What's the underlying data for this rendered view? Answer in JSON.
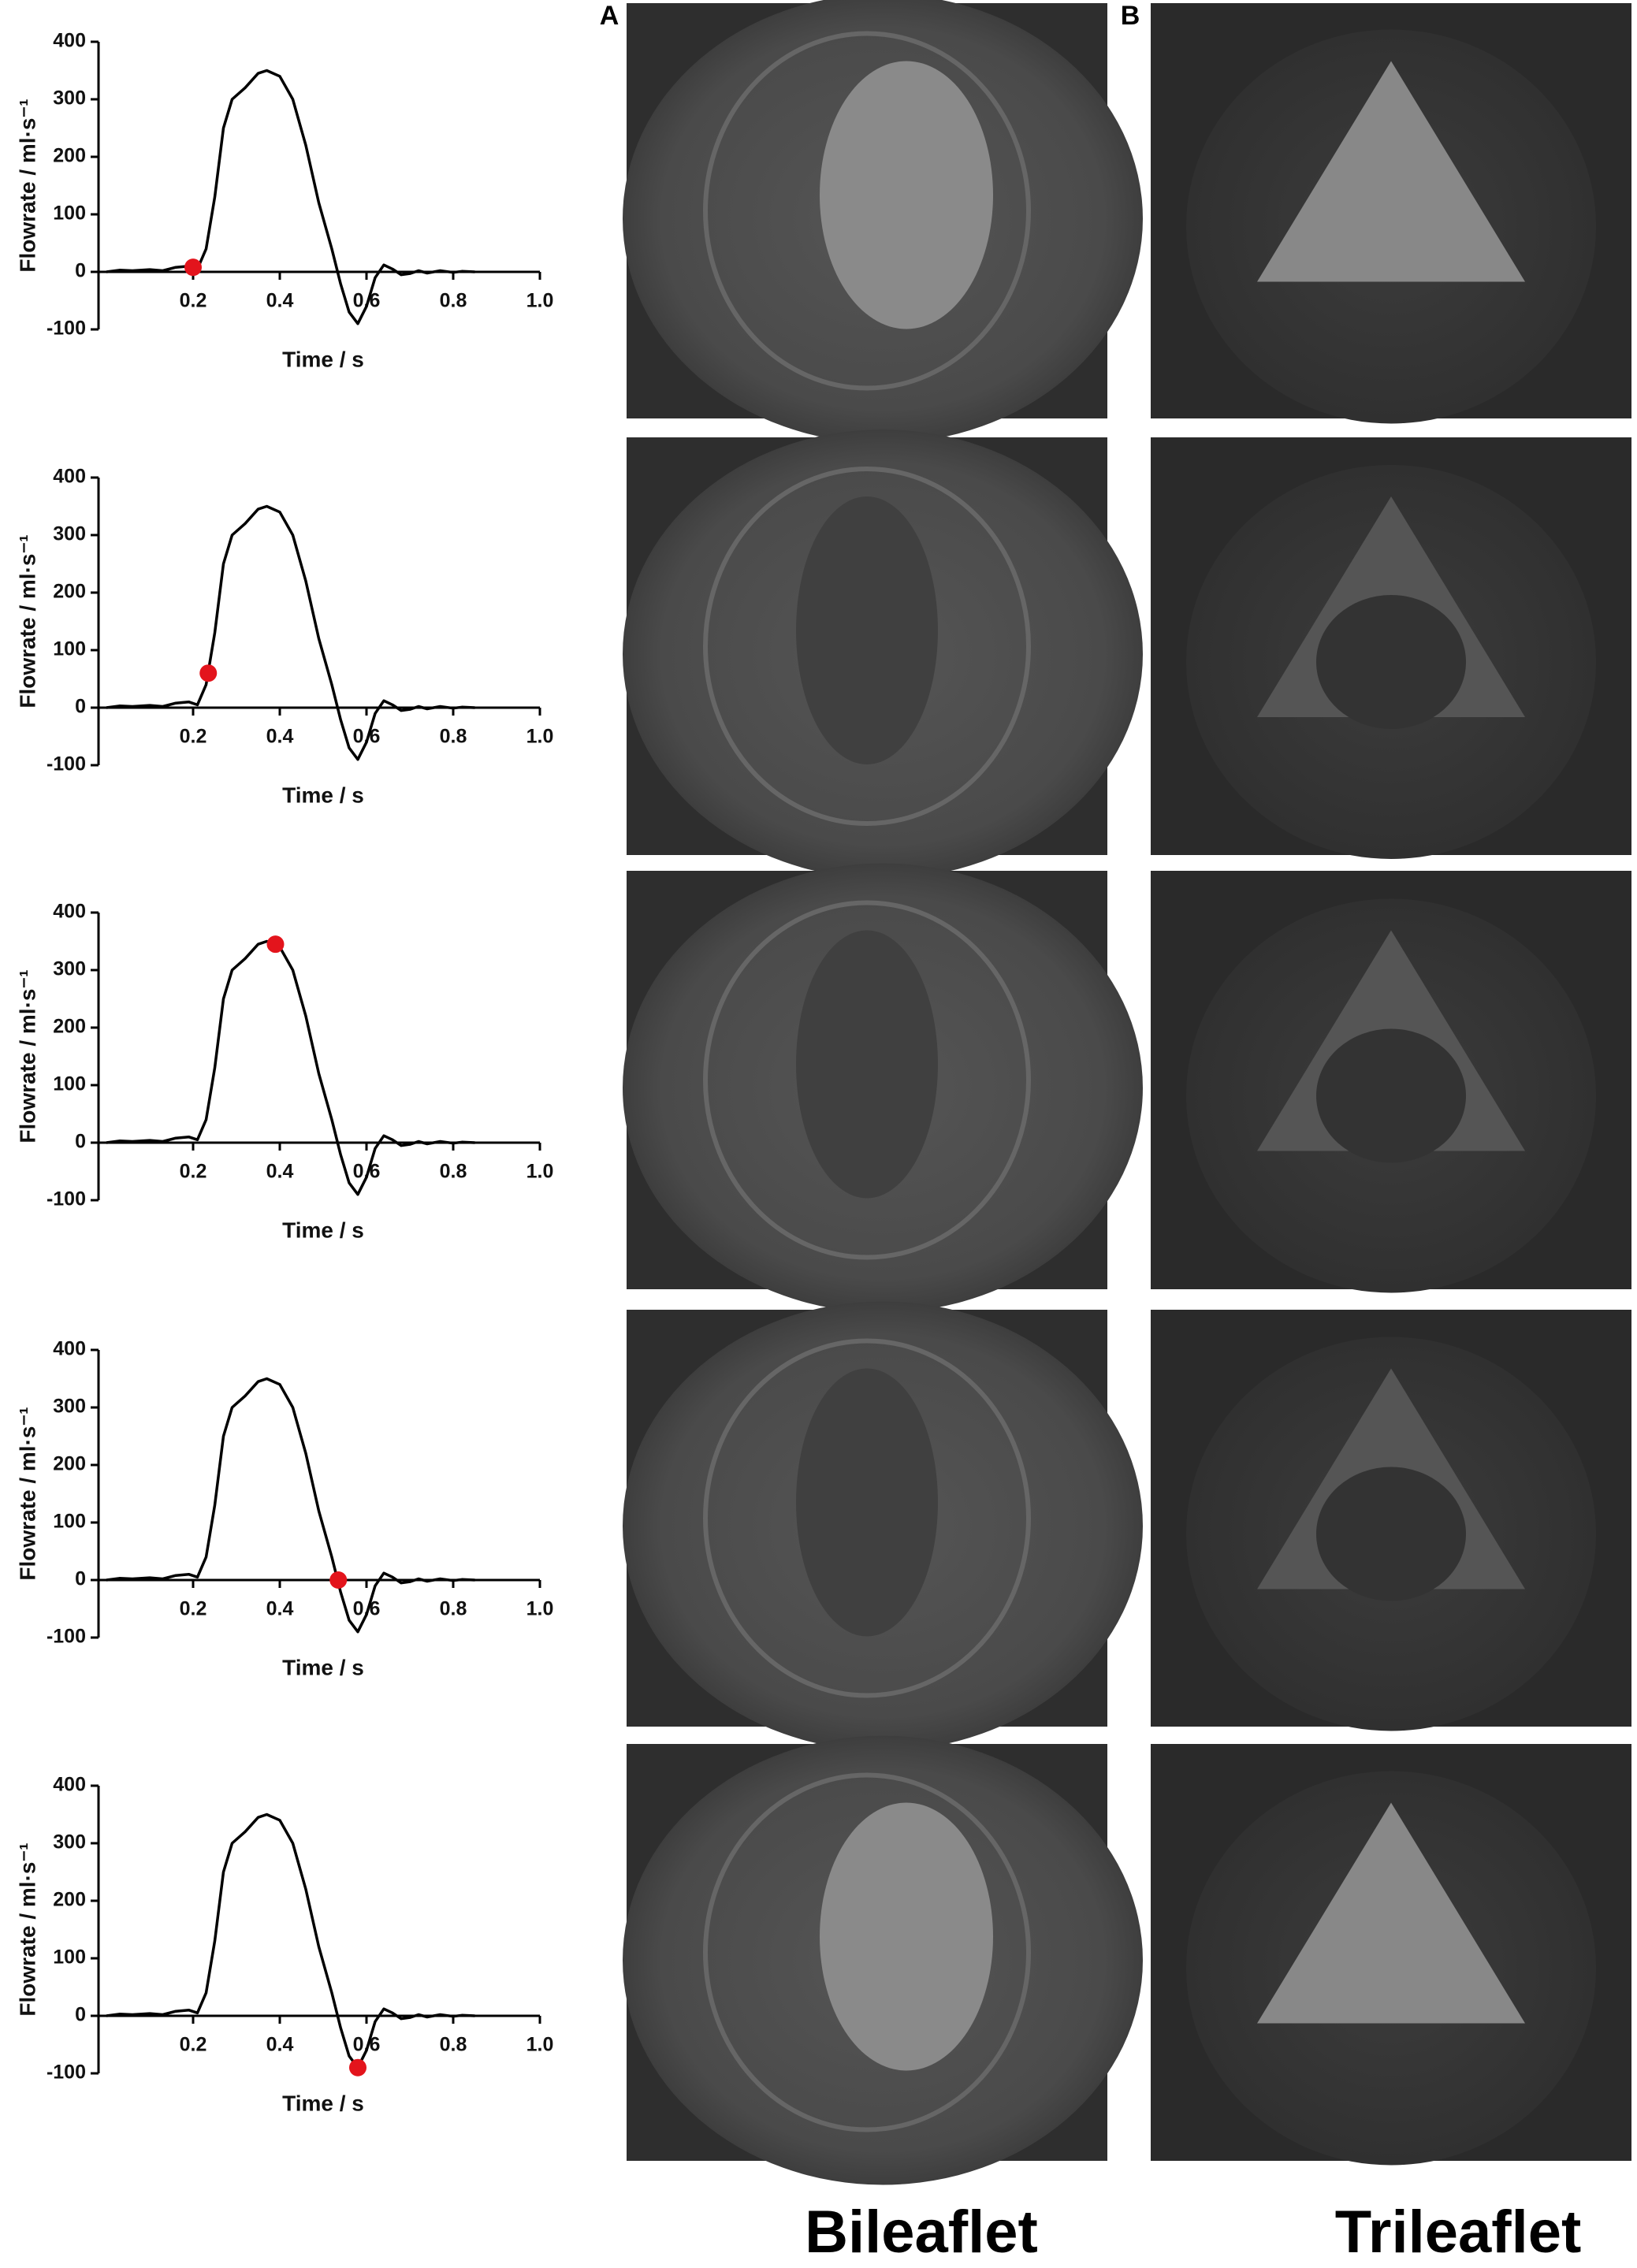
{
  "chart_data": [
    {
      "type": "line",
      "x_label": "Time / s",
      "y_label": "Flowrate / ml·s⁻¹",
      "x": [
        0,
        0.03,
        0.06,
        0.1,
        0.13,
        0.16,
        0.19,
        0.21,
        0.23,
        0.25,
        0.27,
        0.29,
        0.32,
        0.35,
        0.37,
        0.4,
        0.43,
        0.46,
        0.49,
        0.52,
        0.54,
        0.56,
        0.58,
        0.6,
        0.62,
        0.64,
        0.66,
        0.68,
        0.7,
        0.72,
        0.74,
        0.77,
        0.8,
        0.82,
        0.85
      ],
      "series": [
        {
          "color": "#000000",
          "values": [
            0,
            3,
            2,
            4,
            2,
            8,
            10,
            5,
            40,
            130,
            250,
            300,
            320,
            345,
            350,
            340,
            300,
            220,
            120,
            40,
            -20,
            -70,
            -90,
            -60,
            -10,
            12,
            5,
            -5,
            -3,
            2,
            -2,
            2,
            -1,
            1,
            0
          ]
        }
      ],
      "points": [
        {
          "x": 0.2,
          "y": 8,
          "color": "#e3141c"
        }
      ],
      "xlim": [
        0,
        1
      ],
      "xticks": [
        0.2,
        0.4,
        0.6,
        0.8,
        {
          "value": 1,
          "label": "1.0"
        }
      ],
      "ylim": [
        -100,
        400
      ],
      "yticks": [
        -100,
        0,
        100,
        200,
        300,
        400
      ]
    },
    {
      "type": "line",
      "x_label": "Time / s",
      "y_label": "Flowrate / ml·s⁻¹",
      "x": [
        0,
        0.03,
        0.06,
        0.1,
        0.13,
        0.16,
        0.19,
        0.21,
        0.23,
        0.25,
        0.27,
        0.29,
        0.32,
        0.35,
        0.37,
        0.4,
        0.43,
        0.46,
        0.49,
        0.52,
        0.54,
        0.56,
        0.58,
        0.6,
        0.62,
        0.64,
        0.66,
        0.68,
        0.7,
        0.72,
        0.74,
        0.77,
        0.8,
        0.82,
        0.85
      ],
      "series": [
        {
          "color": "#000000",
          "values": [
            0,
            3,
            2,
            4,
            2,
            8,
            10,
            5,
            40,
            130,
            250,
            300,
            320,
            345,
            350,
            340,
            300,
            220,
            120,
            40,
            -20,
            -70,
            -90,
            -60,
            -10,
            12,
            5,
            -5,
            -3,
            2,
            -2,
            2,
            -1,
            1,
            0
          ]
        }
      ],
      "points": [
        {
          "x": 0.235,
          "y": 60,
          "color": "#e3141c"
        }
      ],
      "xlim": [
        0,
        1
      ],
      "xticks": [
        0.2,
        0.4,
        0.6,
        0.8,
        {
          "value": 1,
          "label": "1.0"
        }
      ],
      "ylim": [
        -100,
        400
      ],
      "yticks": [
        -100,
        0,
        100,
        200,
        300,
        400
      ]
    },
    {
      "type": "line",
      "x_label": "Time / s",
      "y_label": "Flowrate / ml·s⁻¹",
      "x": [
        0,
        0.03,
        0.06,
        0.1,
        0.13,
        0.16,
        0.19,
        0.21,
        0.23,
        0.25,
        0.27,
        0.29,
        0.32,
        0.35,
        0.37,
        0.4,
        0.43,
        0.46,
        0.49,
        0.52,
        0.54,
        0.56,
        0.58,
        0.6,
        0.62,
        0.64,
        0.66,
        0.68,
        0.7,
        0.72,
        0.74,
        0.77,
        0.8,
        0.82,
        0.85
      ],
      "series": [
        {
          "color": "#000000",
          "values": [
            0,
            3,
            2,
            4,
            2,
            8,
            10,
            5,
            40,
            130,
            250,
            300,
            320,
            345,
            350,
            340,
            300,
            220,
            120,
            40,
            -20,
            -70,
            -90,
            -60,
            -10,
            12,
            5,
            -5,
            -3,
            2,
            -2,
            2,
            -1,
            1,
            0
          ]
        }
      ],
      "points": [
        {
          "x": 0.39,
          "y": 345,
          "color": "#e3141c"
        }
      ],
      "xlim": [
        0,
        1
      ],
      "xticks": [
        0.2,
        0.4,
        0.6,
        0.8,
        {
          "value": 1,
          "label": "1.0"
        }
      ],
      "ylim": [
        -100,
        400
      ],
      "yticks": [
        -100,
        0,
        100,
        200,
        300,
        400
      ]
    },
    {
      "type": "line",
      "x_label": "Time / s",
      "y_label": "Flowrate / ml·s⁻¹",
      "x": [
        0,
        0.03,
        0.06,
        0.1,
        0.13,
        0.16,
        0.19,
        0.21,
        0.23,
        0.25,
        0.27,
        0.29,
        0.32,
        0.35,
        0.37,
        0.4,
        0.43,
        0.46,
        0.49,
        0.52,
        0.54,
        0.56,
        0.58,
        0.6,
        0.62,
        0.64,
        0.66,
        0.68,
        0.7,
        0.72,
        0.74,
        0.77,
        0.8,
        0.82,
        0.85
      ],
      "series": [
        {
          "color": "#000000",
          "values": [
            0,
            3,
            2,
            4,
            2,
            8,
            10,
            5,
            40,
            130,
            250,
            300,
            320,
            345,
            350,
            340,
            300,
            220,
            120,
            40,
            -20,
            -70,
            -90,
            -60,
            -10,
            12,
            5,
            -5,
            -3,
            2,
            -2,
            2,
            -1,
            1,
            0
          ]
        }
      ],
      "points": [
        {
          "x": 0.535,
          "y": 0,
          "color": "#e3141c"
        }
      ],
      "xlim": [
        0,
        1
      ],
      "xticks": [
        0.2,
        0.4,
        0.6,
        0.8,
        {
          "value": 1,
          "label": "1.0"
        }
      ],
      "ylim": [
        -100,
        400
      ],
      "yticks": [
        -100,
        0,
        100,
        200,
        300,
        400
      ]
    },
    {
      "type": "line",
      "x_label": "Time / s",
      "y_label": "Flowrate / ml·s⁻¹",
      "x": [
        0,
        0.03,
        0.06,
        0.1,
        0.13,
        0.16,
        0.19,
        0.21,
        0.23,
        0.25,
        0.27,
        0.29,
        0.32,
        0.35,
        0.37,
        0.4,
        0.43,
        0.46,
        0.49,
        0.52,
        0.54,
        0.56,
        0.58,
        0.6,
        0.62,
        0.64,
        0.66,
        0.68,
        0.7,
        0.72,
        0.74,
        0.77,
        0.8,
        0.82,
        0.85
      ],
      "series": [
        {
          "color": "#000000",
          "values": [
            0,
            3,
            2,
            4,
            2,
            8,
            10,
            5,
            40,
            130,
            250,
            300,
            320,
            345,
            350,
            340,
            300,
            220,
            120,
            40,
            -20,
            -70,
            -90,
            -60,
            -10,
            12,
            5,
            -5,
            -3,
            2,
            -2,
            2,
            -1,
            1,
            0
          ]
        }
      ],
      "points": [
        {
          "x": 0.58,
          "y": -90,
          "color": "#e3141c"
        }
      ],
      "xlim": [
        0,
        1
      ],
      "xticks": [
        0.2,
        0.4,
        0.6,
        0.8,
        {
          "value": 1,
          "label": "1.0"
        }
      ],
      "ylim": [
        -100,
        400
      ],
      "yticks": [
        -100,
        0,
        100,
        200,
        300,
        400
      ]
    }
  ],
  "labels": {
    "panel_a": "A",
    "panel_b": "B",
    "column_a": "Bileaflet",
    "column_b": "Trileaflet"
  }
}
